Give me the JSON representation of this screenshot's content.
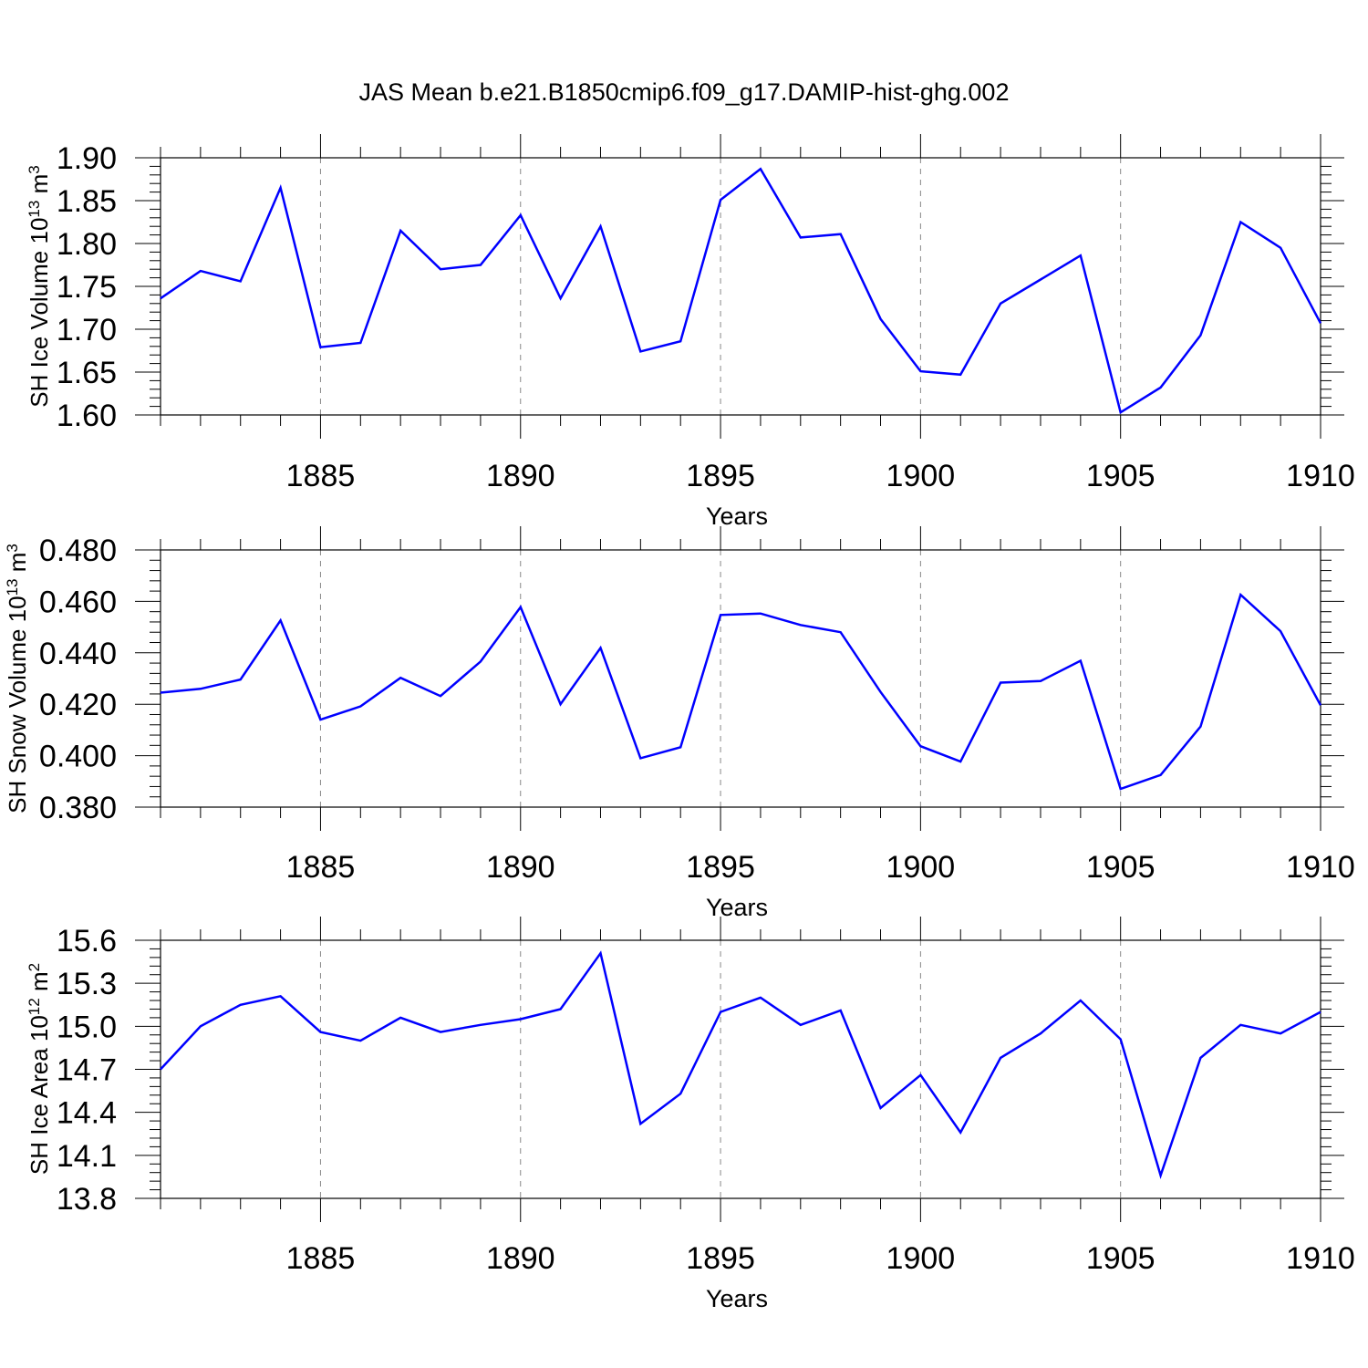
{
  "page_title": "JAS Mean b.e21.B1850cmip6.f09_g17.DAMIP-hist-ghg.002",
  "colors": {
    "line": "#0000ff",
    "axis": "#000000",
    "grid": "#888888"
  },
  "chart_data": [
    {
      "type": "line",
      "xlabel": "Years",
      "ylabel": {
        "main": "SH Ice Volume 10",
        "sup1": "13",
        "mid": " m",
        "sup2": "3"
      },
      "xlim": [
        1881,
        1910
      ],
      "ylim": [
        1.6,
        1.9
      ],
      "xticks": [
        1885,
        1890,
        1895,
        1900,
        1905,
        1910
      ],
      "yticks": [
        "1.60",
        "1.65",
        "1.70",
        "1.75",
        "1.80",
        "1.85",
        "1.90"
      ],
      "grid": "vertical dashed at major x ticks",
      "x": [
        1881,
        1882,
        1883,
        1884,
        1885,
        1886,
        1887,
        1888,
        1889,
        1890,
        1891,
        1892,
        1893,
        1894,
        1895,
        1896,
        1897,
        1898,
        1899,
        1900,
        1901,
        1902,
        1903,
        1904,
        1905,
        1906,
        1907,
        1908,
        1909,
        1910
      ],
      "values": [
        1.736,
        1.768,
        1.756,
        1.865,
        1.679,
        1.684,
        1.815,
        1.77,
        1.775,
        1.833,
        1.736,
        1.82,
        1.674,
        1.686,
        1.851,
        1.887,
        1.807,
        1.811,
        1.712,
        1.651,
        1.647,
        1.73,
        1.758,
        1.786,
        1.603,
        1.632,
        1.693,
        1.825,
        1.795,
        1.707
      ]
    },
    {
      "type": "line",
      "xlabel": "Years",
      "ylabel": {
        "main": "SH Snow Volume 10",
        "sup1": "13",
        "mid": " m",
        "sup2": "3"
      },
      "xlim": [
        1881,
        1910
      ],
      "ylim": [
        0.38,
        0.48
      ],
      "xticks": [
        1885,
        1890,
        1895,
        1900,
        1905,
        1910
      ],
      "yticks": [
        "0.380",
        "0.400",
        "0.420",
        "0.440",
        "0.460",
        "0.480"
      ],
      "grid": "vertical dashed at major x ticks",
      "x": [
        1881,
        1882,
        1883,
        1884,
        1885,
        1886,
        1887,
        1888,
        1889,
        1890,
        1891,
        1892,
        1893,
        1894,
        1895,
        1896,
        1897,
        1898,
        1899,
        1900,
        1901,
        1902,
        1903,
        1904,
        1905,
        1906,
        1907,
        1908,
        1909,
        1910
      ],
      "values": [
        0.4245,
        0.426,
        0.4296,
        0.4526,
        0.414,
        0.4192,
        0.4303,
        0.4232,
        0.4366,
        0.4578,
        0.42,
        0.4419,
        0.399,
        0.4033,
        0.4547,
        0.4553,
        0.4508,
        0.448,
        0.4248,
        0.4037,
        0.3977,
        0.4284,
        0.429,
        0.4369,
        0.3871,
        0.3925,
        0.4113,
        0.4626,
        0.4484,
        0.4196
      ]
    },
    {
      "type": "line",
      "xlabel": "Years",
      "ylabel": {
        "main": "SH Ice Area 10",
        "sup1": "12",
        "mid": " m",
        "sup2": "2"
      },
      "xlim": [
        1881,
        1910
      ],
      "ylim": [
        13.8,
        15.6
      ],
      "xticks": [
        1885,
        1890,
        1895,
        1900,
        1905,
        1910
      ],
      "yticks": [
        "13.8",
        "14.1",
        "14.4",
        "14.7",
        "15.0",
        "15.3",
        "15.6"
      ],
      "grid": "vertical dashed at major x ticks",
      "x": [
        1881,
        1882,
        1883,
        1884,
        1885,
        1886,
        1887,
        1888,
        1889,
        1890,
        1891,
        1892,
        1893,
        1894,
        1895,
        1896,
        1897,
        1898,
        1899,
        1900,
        1901,
        1902,
        1903,
        1904,
        1905,
        1906,
        1907,
        1908,
        1909,
        1910
      ],
      "values": [
        14.7,
        15.0,
        15.15,
        15.21,
        14.96,
        14.9,
        15.06,
        14.96,
        15.01,
        15.05,
        15.12,
        15.51,
        14.32,
        14.53,
        15.1,
        15.2,
        15.01,
        15.11,
        14.43,
        14.66,
        14.26,
        14.78,
        14.95,
        15.18,
        14.91,
        13.96,
        14.78,
        15.01,
        14.95,
        15.1
      ]
    }
  ]
}
